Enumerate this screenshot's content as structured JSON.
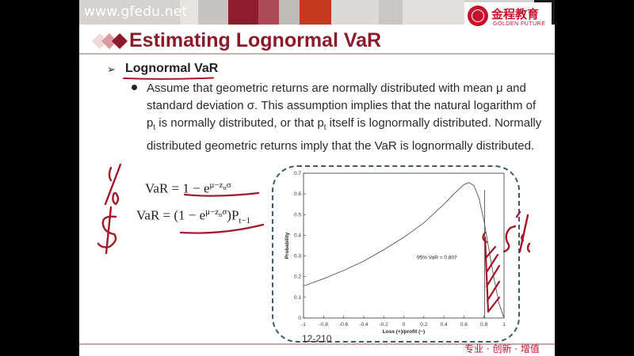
{
  "header": {
    "url": "www.gfedu.net",
    "logo_cn": "金程教育",
    "logo_en": "GOLDEN FUTURE"
  },
  "slide": {
    "title": "Estimating Lognormal VaR",
    "subtitle": "Lognormal VaR",
    "bullet": "Assume that geometric returns are normally distributed with mean μ and standard deviation σ. This assumption implies that the natural logarithm of pt is normally distributed, or that pt itself is lognormally distributed. Normally distributed geometric returns imply that the VaR is lognormally distributed.",
    "bullet_parts": {
      "a": "Assume that geometric returns are normally distributed with mean μ and standard deviation σ. This assumption implies that the natural logarithm of p",
      "sub1": "t",
      "b": " is normally distributed, or that p",
      "sub2": "t",
      "c": " itself is lognormally distributed. Normally distributed geometric returns imply that the VaR is lognormally distributed."
    },
    "formula1": {
      "lhs": "VaR = 1 − e",
      "exp": "μ−z",
      "exp_sub": "α",
      "exp_tail": "σ"
    },
    "formula2": {
      "lhs": "VaR = (1 − e",
      "exp": "μ−z",
      "exp_sub": "α",
      "exp_tail": "σ",
      "rhs": ")P",
      "rhs_sub": "t−1"
    },
    "page": "12-210",
    "tagline": "专业 · 创新 · 增值"
  },
  "colors": {
    "brand_red": "#c8102e",
    "title_color": "#8b1a2b",
    "frame_blue": "#3f5873",
    "ink_red": "#a4182a"
  },
  "chart_data": {
    "type": "line",
    "title": "",
    "xlabel": "Loss (+)/profit (−)",
    "ylabel": "Probability",
    "xlim": [
      -1,
      1
    ],
    "ylim": [
      0,
      0.7
    ],
    "xticks": [
      "-1",
      "-0.8",
      "-0.6",
      "-0.4",
      "-0.2",
      "0",
      "0.2",
      "0.4",
      "0.6",
      "0.8",
      "1"
    ],
    "yticks": [
      "0",
      "0.1",
      "0.2",
      "0.3",
      "0.4",
      "0.5",
      "0.6",
      "0.7"
    ],
    "series": [
      {
        "x": [
          -1,
          -0.8,
          -0.6,
          -0.4,
          -0.2,
          0,
          0.2,
          0.4,
          0.5,
          0.6,
          0.65,
          0.7,
          0.75,
          0.8,
          0.85,
          0.9,
          0.95,
          1
        ],
        "y": [
          0.155,
          0.19,
          0.23,
          0.275,
          0.33,
          0.39,
          0.46,
          0.55,
          0.6,
          0.645,
          0.655,
          0.64,
          0.58,
          0.47,
          0.33,
          0.19,
          0.07,
          0
        ]
      }
    ],
    "var_line_x": 0.807,
    "annotation": "95% VaR = 0.807"
  },
  "annotations": {
    "percent_mark": "%",
    "dollar_mark": "$",
    "five_percent": "5%"
  }
}
